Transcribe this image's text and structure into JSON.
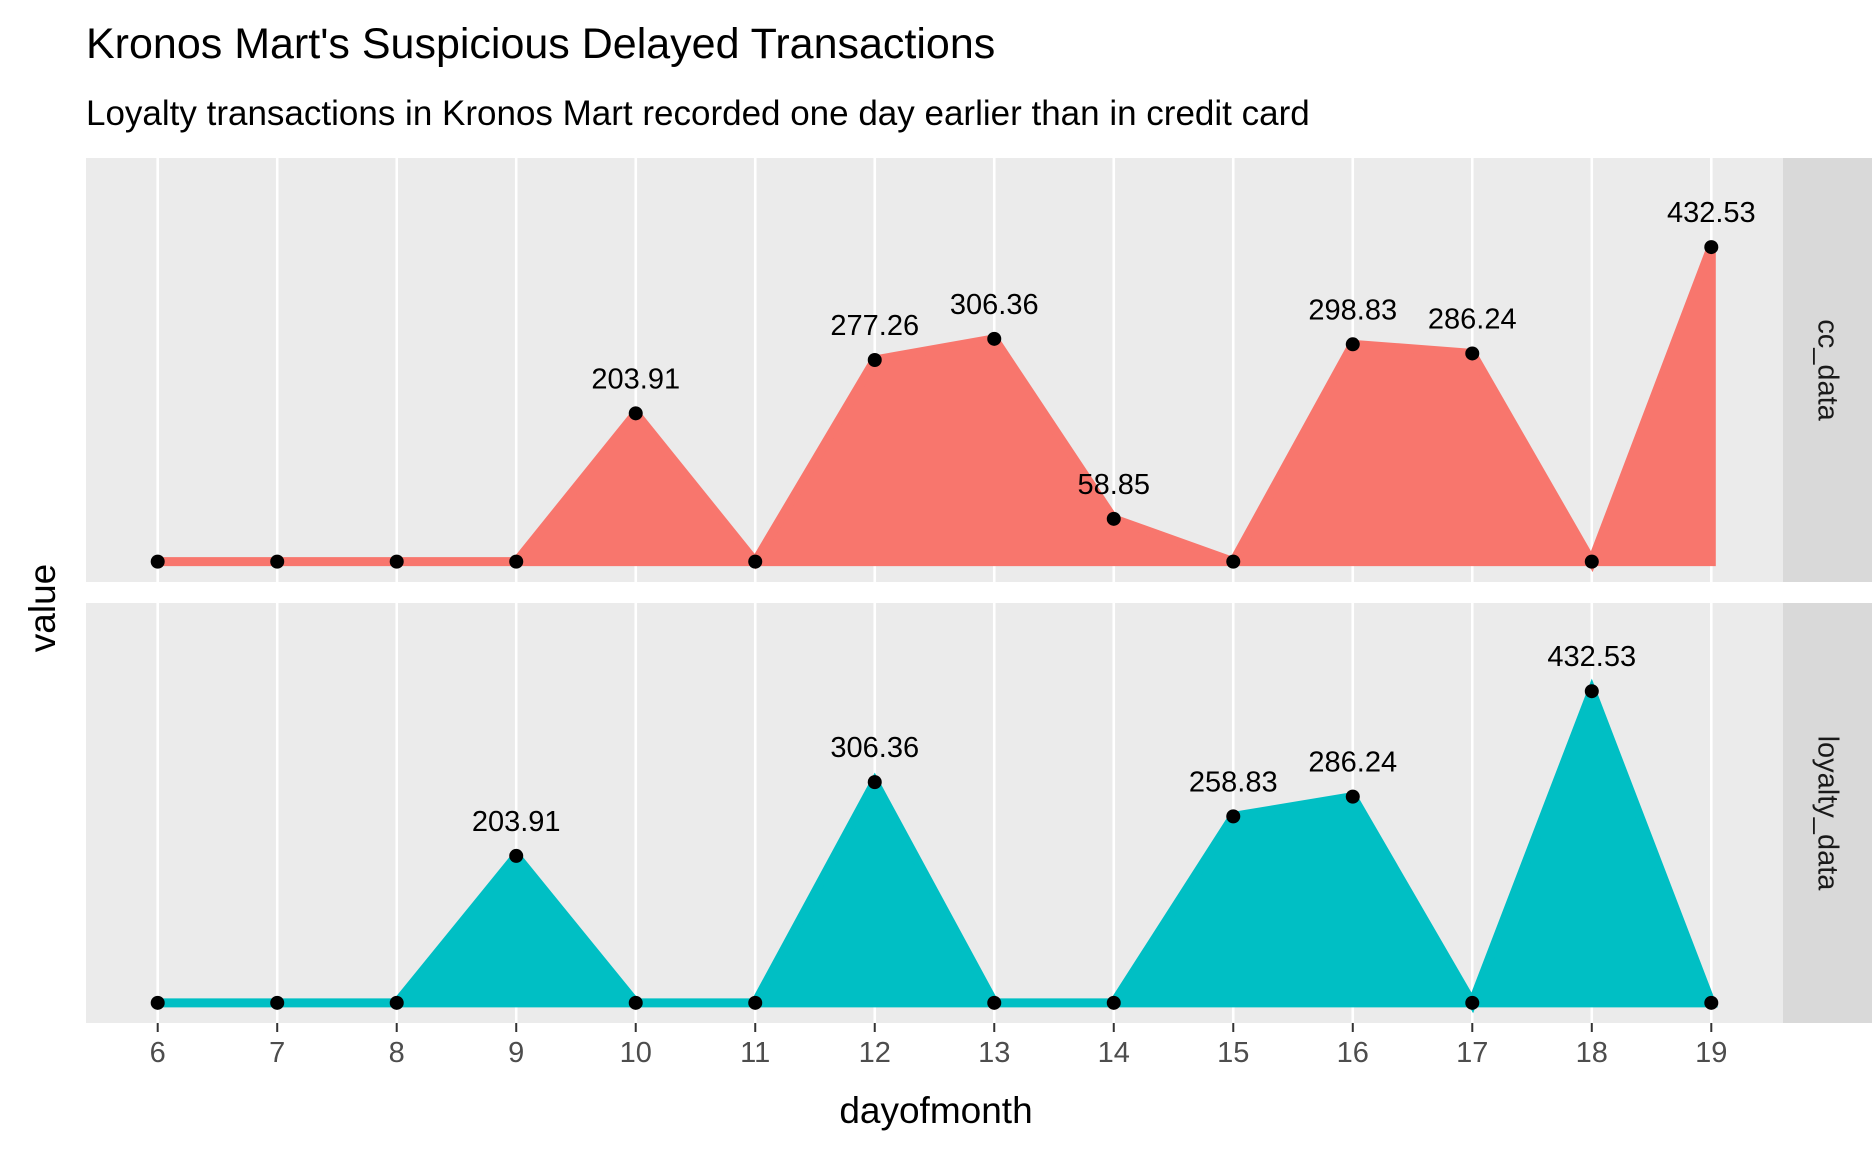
{
  "chart_data": {
    "type": "area",
    "title": "Kronos Mart's Suspicious Delayed Transactions",
    "subtitle": "Loyalty transactions in Kronos Mart recorded one day earlier than in credit card",
    "xlabel": "dayofmonth",
    "ylabel": "value",
    "x": [
      6,
      7,
      8,
      9,
      10,
      11,
      12,
      13,
      14,
      15,
      16,
      17,
      18,
      19
    ],
    "xlim": [
      5.4,
      19.6
    ],
    "ylim": [
      -28,
      555
    ],
    "grid": true,
    "legend": "none",
    "facets": [
      {
        "name": "cc_data",
        "color": "#F8766D",
        "values": [
          0,
          0,
          0,
          0,
          203.91,
          0,
          277.26,
          306.36,
          58.85,
          0,
          298.83,
          286.24,
          0,
          432.53
        ],
        "labels": [
          "",
          "",
          "",
          "",
          "203.91",
          "",
          "277.26",
          "306.36",
          "58.85",
          "",
          "298.83",
          "286.24",
          "",
          "432.53"
        ]
      },
      {
        "name": "loyalty_data",
        "color": "#00BFC4",
        "values": [
          0,
          0,
          0,
          203.91,
          0,
          0,
          306.36,
          0,
          0,
          258.83,
          286.24,
          0,
          432.53,
          0
        ],
        "labels": [
          "",
          "",
          "",
          "203.91",
          "",
          "",
          "306.36",
          "",
          "",
          "258.83",
          "286.24",
          "",
          "432.53",
          ""
        ]
      }
    ]
  }
}
